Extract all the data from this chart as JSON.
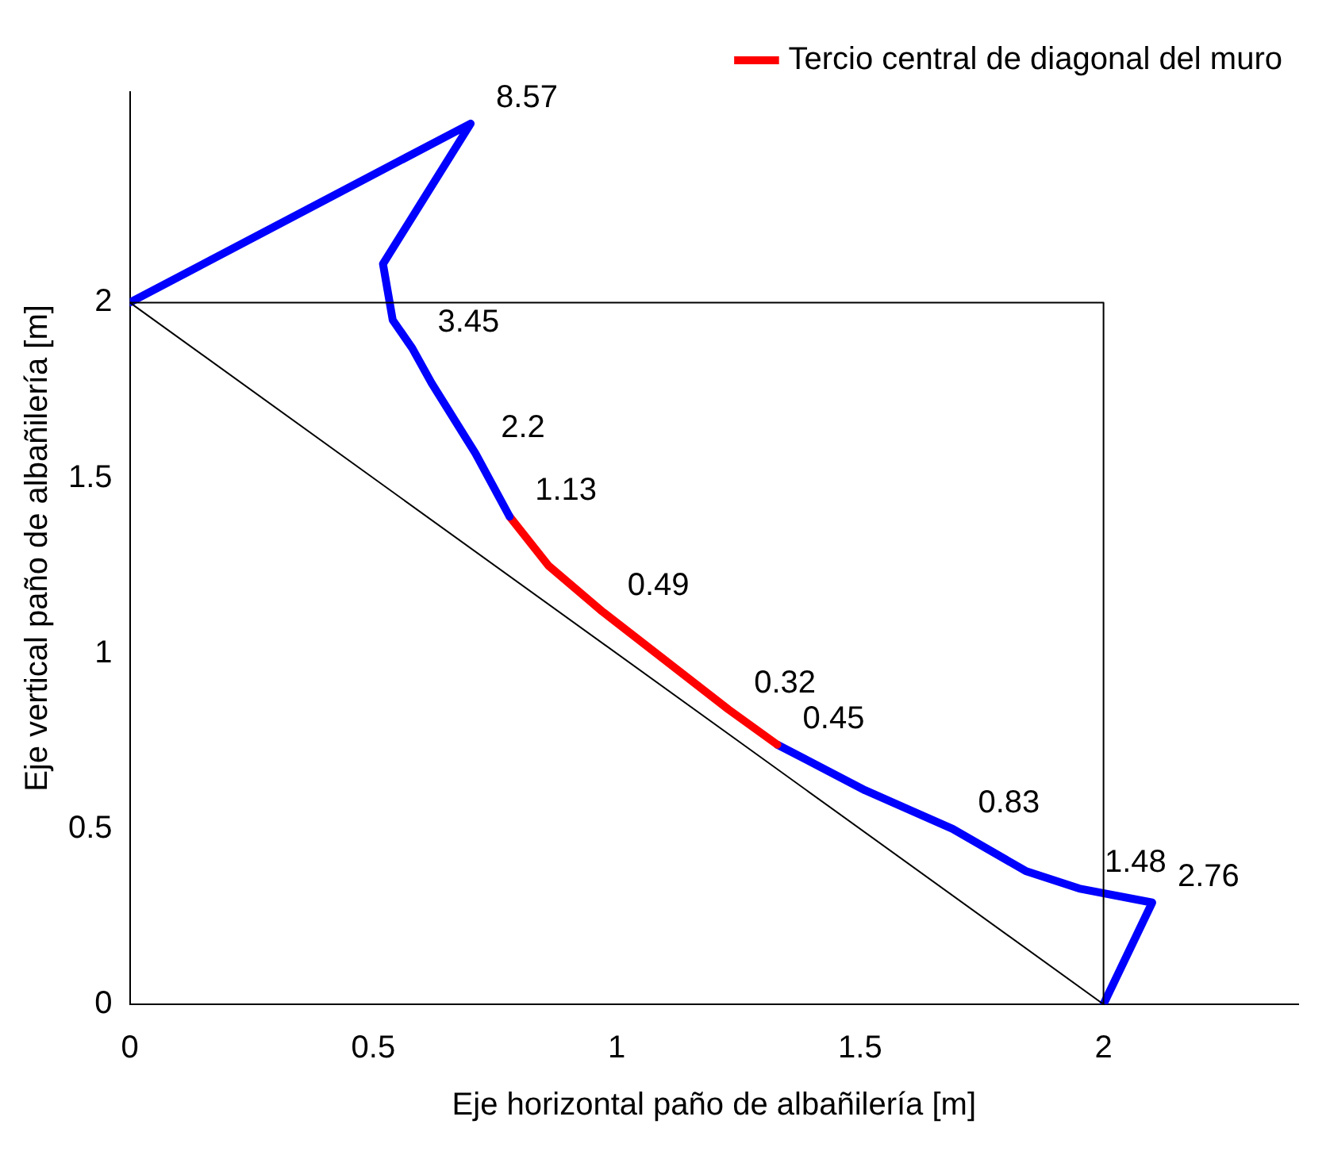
{
  "chart_data": {
    "type": "line",
    "xlabel": "Eje horizontal paño de albañilería [m]",
    "ylabel": "Eje vertical paño de albañilería [m]",
    "xlim": [
      0,
      2.4
    ],
    "ylim": [
      0,
      2.6
    ],
    "xticks": [
      0,
      0.5,
      1,
      1.5,
      2
    ],
    "yticks": [
      0,
      0.5,
      1,
      1.5,
      2
    ],
    "grid": false,
    "legend": "top right",
    "marker": "none",
    "line_style": "solid",
    "series": [
      {
        "color": "#000000",
        "x": [
          0,
          2,
          2
        ],
        "values": [
          2,
          2,
          0
        ]
      },
      {
        "color": "#000000",
        "x": [
          0,
          2
        ],
        "values": [
          2,
          0
        ]
      },
      {
        "color": "#0000ff",
        "x": [
          0,
          0.7,
          0.52,
          0.54,
          0.58,
          0.62,
          0.71,
          0.78
        ],
        "values": [
          2,
          2.51,
          2.11,
          1.95,
          1.87,
          1.77,
          1.57,
          1.39
        ]
      },
      {
        "name": "Tercio central de diagonal del muro",
        "color": "#ff0000",
        "x": [
          0.78,
          0.86,
          0.97,
          1.1,
          1.23,
          1.33
        ],
        "values": [
          1.39,
          1.25,
          1.12,
          0.98,
          0.84,
          0.74
        ]
      },
      {
        "color": "#0000ff",
        "x": [
          1.33,
          1.51,
          1.69,
          1.84,
          1.95,
          2.1,
          2.0
        ],
        "values": [
          0.74,
          0.61,
          0.5,
          0.38,
          0.33,
          0.29,
          0
        ]
      }
    ],
    "annotations": [
      {
        "text": "8.57",
        "x": 0.7,
        "y": 2.51
      },
      {
        "text": "3.45",
        "x": 0.58,
        "y": 1.87
      },
      {
        "text": "2.2",
        "x": 0.71,
        "y": 1.57
      },
      {
        "text": "1.13",
        "x": 0.78,
        "y": 1.39
      },
      {
        "text": "0.49",
        "x": 0.97,
        "y": 1.12
      },
      {
        "text": "0.32",
        "x": 1.23,
        "y": 0.84
      },
      {
        "text": "0.45",
        "x": 1.33,
        "y": 0.74
      },
      {
        "text": "0.83",
        "x": 1.69,
        "y": 0.5
      },
      {
        "text": "1.48",
        "x": 1.95,
        "y": 0.33
      },
      {
        "text": "2.76",
        "x": 2.1,
        "y": 0.29
      }
    ]
  }
}
